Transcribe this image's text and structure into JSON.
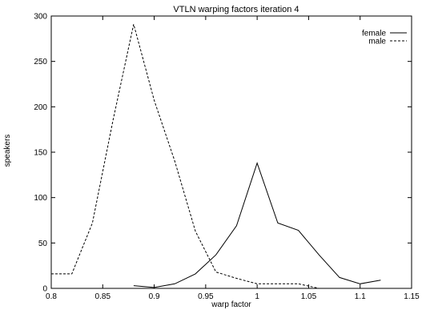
{
  "chart_data": {
    "type": "line",
    "title": "VTLN warping factors iteration 4",
    "xlabel": "warp factor",
    "ylabel": "speakers",
    "xlim": [
      0.8,
      1.15
    ],
    "ylim": [
      0,
      300
    ],
    "xticks": [
      0.8,
      0.85,
      0.9,
      0.95,
      1.0,
      1.05,
      1.1,
      1.15
    ],
    "xtick_labels": [
      "0.8",
      "0.85",
      "0.9",
      "0.95",
      "1",
      "1.05",
      "1.1",
      "1.15"
    ],
    "yticks": [
      0,
      50,
      100,
      150,
      200,
      250,
      300
    ],
    "ytick_labels": [
      "0",
      "50",
      "100",
      "150",
      "200",
      "250",
      "300"
    ],
    "grid": false,
    "legend_position": "top-right",
    "series": [
      {
        "name": "female",
        "style": "solid",
        "color": "#000000",
        "x": [
          0.88,
          0.9,
          0.92,
          0.94,
          0.96,
          0.98,
          1.0,
          1.02,
          1.04,
          1.06,
          1.08,
          1.1,
          1.12
        ],
        "y": [
          3,
          1,
          5,
          16,
          37,
          69,
          138,
          72,
          64,
          37,
          12,
          5,
          9
        ]
      },
      {
        "name": "male",
        "style": "dashed",
        "color": "#000000",
        "x": [
          0.8,
          0.82,
          0.84,
          0.86,
          0.88,
          0.9,
          0.92,
          0.94,
          0.96,
          0.98,
          1.0,
          1.02,
          1.04,
          1.06
        ],
        "y": [
          16,
          16,
          72,
          185,
          291,
          207,
          140,
          63,
          18,
          11,
          5,
          5,
          5,
          0
        ]
      }
    ]
  }
}
